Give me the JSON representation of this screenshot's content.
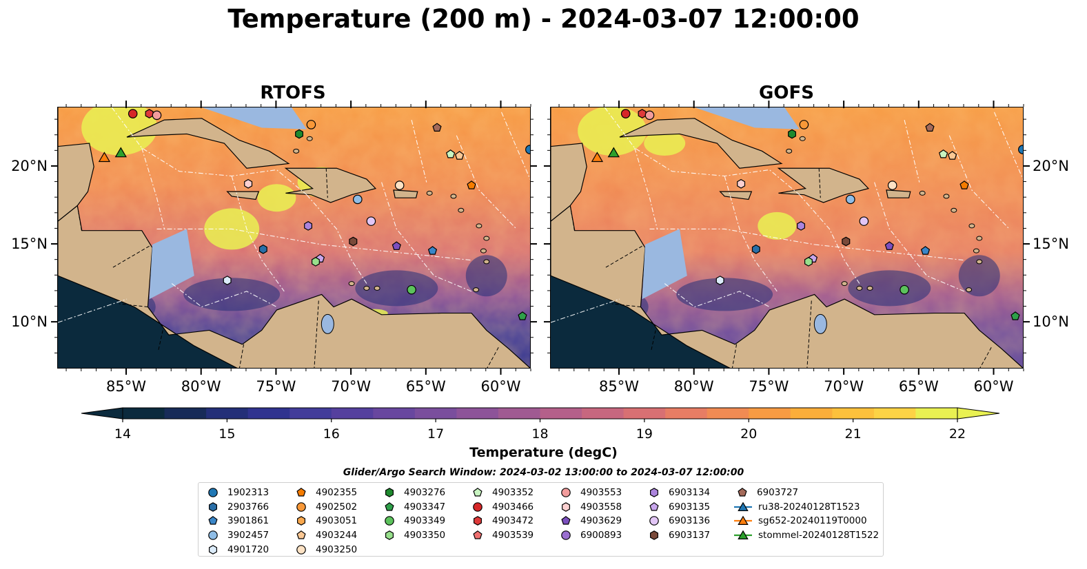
{
  "title": "Temperature (200 m) - 2024-03-07 12:00:00",
  "panels": [
    {
      "title": "RTOFS",
      "key": "rtofs"
    },
    {
      "title": "GOFS",
      "key": "gofs"
    }
  ],
  "axes": {
    "lon_ticks": [
      "85°W",
      "80°W",
      "75°W",
      "70°W",
      "65°W",
      "60°W"
    ],
    "lat_ticks": [
      "20°N",
      "15°N",
      "10°N"
    ]
  },
  "colorbar": {
    "label": "Temperature (degC)",
    "ticks": [
      "14",
      "15",
      "16",
      "17",
      "18",
      "19",
      "20",
      "21",
      "22"
    ],
    "colors": [
      "#0b2a3d",
      "#172b58",
      "#232f78",
      "#30338f",
      "#423c9a",
      "#55409e",
      "#68479f",
      "#7a4e9d",
      "#8d5399",
      "#a05a92",
      "#b4608a",
      "#c7677f",
      "#d87073",
      "#e77d64",
      "#f18b53",
      "#f79b43",
      "#fbae3a",
      "#fdc13c",
      "#fdd345",
      "#e9f152"
    ],
    "extend": "both",
    "range": [
      14,
      22
    ]
  },
  "legend": {
    "title": "Glider/Argo Search Window: 2024-03-02 13:00:00 to 2024-03-07 12:00:00",
    "columns": [
      [
        {
          "label": "1902313",
          "marker": "circle",
          "color": "#1f77b4"
        },
        {
          "label": "2903766",
          "marker": "hexagon",
          "color": "#2a6fa8"
        },
        {
          "label": "3901861",
          "marker": "pentagon",
          "color": "#3a86c8"
        },
        {
          "label": "3902457",
          "marker": "circle",
          "color": "#8fbde6"
        },
        {
          "label": "4901720",
          "marker": "hexagon",
          "color": "#dcecfa"
        }
      ],
      [
        {
          "label": "4902355",
          "marker": "pentagon",
          "color": "#f57c00"
        },
        {
          "label": "4902502",
          "marker": "circle",
          "color": "#f89838"
        },
        {
          "label": "4903051",
          "marker": "hexagon",
          "color": "#f9a84e"
        },
        {
          "label": "4903244",
          "marker": "pentagon",
          "color": "#fbc894"
        },
        {
          "label": "4903250",
          "marker": "circle",
          "color": "#fde2c4"
        }
      ],
      [
        {
          "label": "4903276",
          "marker": "hexagon",
          "color": "#1e8a2e"
        },
        {
          "label": "4903347",
          "marker": "pentagon",
          "color": "#2fa04a"
        },
        {
          "label": "4903349",
          "marker": "circle",
          "color": "#5cc25c"
        },
        {
          "label": "4903350",
          "marker": "hexagon",
          "color": "#98e08c"
        }
      ],
      [
        {
          "label": "4903352",
          "marker": "pentagon",
          "color": "#c9f5c2"
        },
        {
          "label": "4903466",
          "marker": "circle",
          "color": "#d62728"
        },
        {
          "label": "4903472",
          "marker": "hexagon",
          "color": "#df3a3a"
        },
        {
          "label": "4903539",
          "marker": "pentagon",
          "color": "#ef7070"
        }
      ],
      [
        {
          "label": "4903553",
          "marker": "circle",
          "color": "#f29c9c"
        },
        {
          "label": "4903558",
          "marker": "hexagon",
          "color": "#fbd0d0"
        },
        {
          "label": "4903629",
          "marker": "pentagon",
          "color": "#7b4fbe"
        },
        {
          "label": "6900893",
          "marker": "circle",
          "color": "#9a6fd0"
        }
      ],
      [
        {
          "label": "6903134",
          "marker": "hexagon",
          "color": "#ab84dc"
        },
        {
          "label": "6903135",
          "marker": "pentagon",
          "color": "#c8a6ec"
        },
        {
          "label": "6903136",
          "marker": "circle",
          "color": "#e2c6f6"
        },
        {
          "label": "6903137",
          "marker": "hexagon",
          "color": "#7a4a3a"
        }
      ],
      [
        {
          "label": "6903727",
          "marker": "pentagon",
          "color": "#a46a5a"
        },
        {
          "label": "ru38-20240128T1523",
          "marker": "triangle-line",
          "color": "#1f77b4"
        },
        {
          "label": "sg652-20240119T0000",
          "marker": "triangle-line",
          "color": "#ff7f0e"
        },
        {
          "label": "stommel-20240128T1522",
          "marker": "triangle-line",
          "color": "#2ca02c"
        }
      ]
    ]
  },
  "map_colors": {
    "land": "#d2b48c",
    "shelf": "#9ab8e0",
    "pacific": "#0b2a3d",
    "coastline": "#000000",
    "eez_lines": "#ffffff"
  },
  "observations": [
    {
      "id": "4903466",
      "marker": "circle",
      "color": "#d62728",
      "lon": -84.6,
      "lat": 23.4
    },
    {
      "id": "4903472",
      "marker": "hexagon",
      "color": "#df3a3a",
      "lon": -83.5,
      "lat": 23.4
    },
    {
      "id": "4903553",
      "marker": "circle",
      "color": "#f29c9c",
      "lon": -83.0,
      "lat": 23.3
    },
    {
      "id": "4902502",
      "marker": "circle",
      "color": "#f89838",
      "lon": -72.7,
      "lat": 22.7
    },
    {
      "id": "4903276",
      "marker": "hexagon",
      "color": "#1e8a2e",
      "lon": -73.5,
      "lat": 22.1
    },
    {
      "id": "6903727",
      "marker": "pentagon",
      "color": "#a46a5a",
      "lon": -64.3,
      "lat": 22.5
    },
    {
      "id": "4903352",
      "marker": "pentagon",
      "color": "#c9f5c2",
      "lon": -63.4,
      "lat": 20.8
    },
    {
      "id": "4903244",
      "marker": "pentagon",
      "color": "#fbc894",
      "lon": -62.8,
      "lat": 20.7
    },
    {
      "id": "4903250",
      "marker": "circle",
      "color": "#fde2c4",
      "lon": -66.8,
      "lat": 18.8
    },
    {
      "id": "4902355",
      "marker": "pentagon",
      "color": "#f57c00",
      "lon": -62.0,
      "lat": 18.8
    },
    {
      "id": "4903558",
      "marker": "hexagon",
      "color": "#fbd0d0",
      "lon": -76.9,
      "lat": 18.9
    },
    {
      "id": "3902457",
      "marker": "circle",
      "color": "#8fbde6",
      "lon": -69.6,
      "lat": 17.9
    },
    {
      "id": "6903136",
      "marker": "circle",
      "color": "#e2c6f6",
      "lon": -68.7,
      "lat": 16.5
    },
    {
      "id": "6903134",
      "marker": "hexagon",
      "color": "#ab84dc",
      "lon": -72.9,
      "lat": 16.2
    },
    {
      "id": "6903137",
      "marker": "hexagon",
      "color": "#7a4a3a",
      "lon": -69.9,
      "lat": 15.2
    },
    {
      "id": "4903629",
      "marker": "pentagon",
      "color": "#7b4fbe",
      "lon": -67.0,
      "lat": 14.9
    },
    {
      "id": "2903766",
      "marker": "hexagon",
      "color": "#2a6fa8",
      "lon": -75.9,
      "lat": 14.7
    },
    {
      "id": "3901861",
      "marker": "pentagon",
      "color": "#3a86c8",
      "lon": -64.6,
      "lat": 14.6
    },
    {
      "id": "6903135",
      "marker": "pentagon",
      "color": "#c8a6ec",
      "lon": -72.1,
      "lat": 14.1
    },
    {
      "id": "4903350",
      "marker": "hexagon",
      "color": "#98e08c",
      "lon": -72.4,
      "lat": 13.9
    },
    {
      "id": "4901720",
      "marker": "hexagon",
      "color": "#dcecfa",
      "lon": -78.3,
      "lat": 12.7
    },
    {
      "id": "4903349",
      "marker": "circle",
      "color": "#5cc25c",
      "lon": -66.0,
      "lat": 12.1
    },
    {
      "id": "4903347",
      "marker": "pentagon",
      "color": "#2fa04a",
      "lon": -58.6,
      "lat": 10.4
    },
    {
      "id": "1902313",
      "marker": "circle",
      "color": "#1f77b4",
      "lon": -58.1,
      "lat": 21.1
    },
    {
      "id": "sg652-20240119T0000",
      "marker": "triangle",
      "color": "#ff7f0e",
      "lon": -86.5,
      "lat": 20.6
    },
    {
      "id": "stommel-20240128T1522",
      "marker": "triangle",
      "color": "#2ca02c",
      "lon": -85.4,
      "lat": 20.9
    }
  ]
}
